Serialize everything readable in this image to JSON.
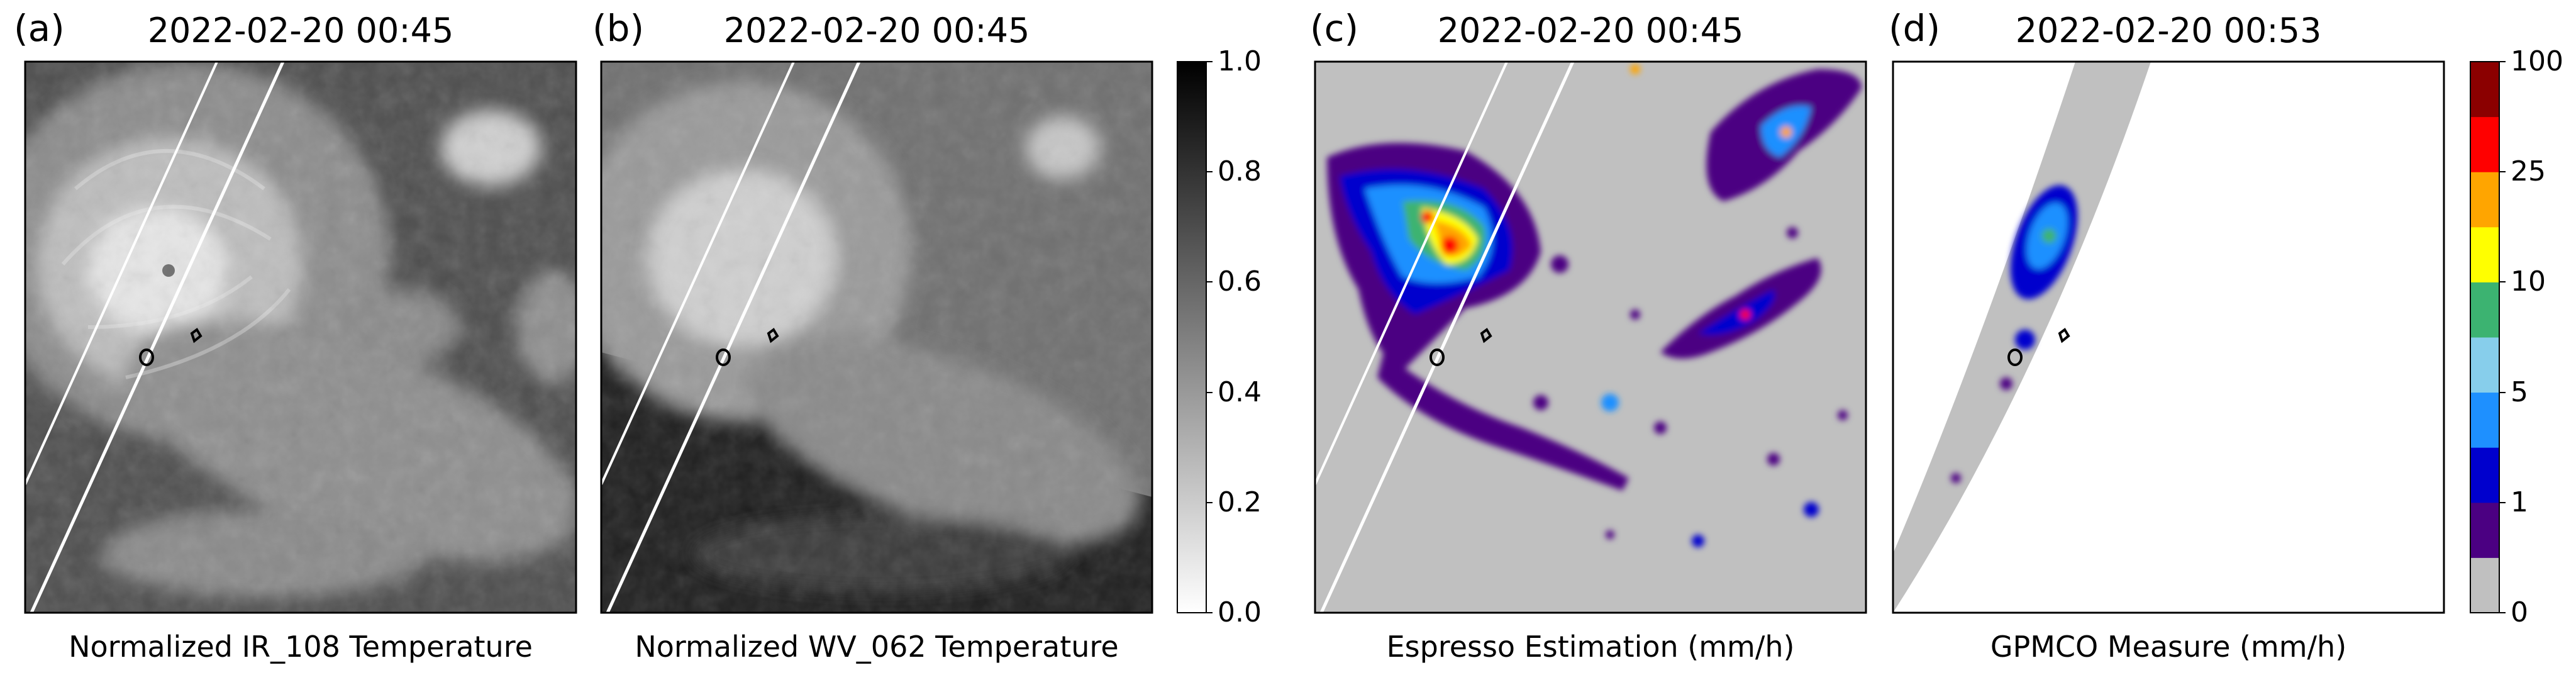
{
  "panels": [
    {
      "letter": "(a)",
      "title": "2022-02-20 00:45",
      "label": "Normalized IR_108 Temperature",
      "kind": "ir"
    },
    {
      "letter": "(b)",
      "title": "2022-02-20 00:45",
      "label": "Normalized WV_062 Temperature",
      "kind": "wv"
    },
    {
      "letter": "(c)",
      "title": "2022-02-20 00:45",
      "label": "Espresso Estimation (mm/h)",
      "kind": "espresso"
    },
    {
      "letter": "(d)",
      "title": "2022-02-20 00:53",
      "label": "GPMCO Measure (mm/h)",
      "kind": "gpm"
    }
  ],
  "colorbar_gray": {
    "ticks": [
      "1.0",
      "0.8",
      "0.6",
      "0.4",
      "0.2",
      "0.0"
    ],
    "range": [
      0,
      1
    ],
    "colors": [
      "#ffffff",
      "#000000"
    ]
  },
  "colorbar_rain": {
    "ticks": [
      "100",
      "25",
      "10",
      "5",
      "1",
      "0"
    ],
    "colors": [
      "#c0c0c0",
      "#4b0082",
      "#0000cd",
      "#1e90ff",
      "#87ceeb",
      "#3cb371",
      "#ffff00",
      "#ffa500",
      "#ff0000",
      "#8b0000"
    ]
  },
  "chart_data": {
    "type": "heatmap",
    "panels": [
      "Normalized IR_108 Temperature",
      "Normalized WV_062 Temperature",
      "Espresso Estimation (mm/h)",
      "GPMCO Measure (mm/h)"
    ],
    "gray_scale_range": [
      0,
      1
    ],
    "gray_scale_ticks": [
      0.0,
      0.2,
      0.4,
      0.6,
      0.8,
      1.0
    ],
    "rain_rate_ticks_mm_per_h": [
      0,
      1,
      5,
      10,
      25,
      100
    ],
    "rain_levels": 10
  }
}
